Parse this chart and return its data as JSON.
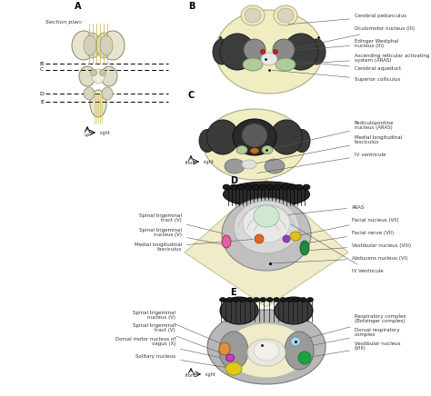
{
  "bg_color": "#ffffff",
  "panel_A_label": "A",
  "panel_B_label": "B",
  "panel_C_label": "C",
  "panel_D_label": "D",
  "panel_E_label": "E",
  "section_plan_text": "Section plan:",
  "B_labels": [
    "Cerebral pedunculus",
    "Oculomotor nucleus (III)",
    "Edinger Westphal\nnucleus (III)",
    "Ascending reticular activating\nsystem (ARAS)",
    "Cerebral aqueduct",
    "Superior colliculus"
  ],
  "C_labels": [
    "Pediculopontine\nnucleus (ARAS)",
    "Medial longitudinal\nfasciculus",
    "IV ventricule"
  ],
  "D_labels_left": [
    "Spinal trigeminal\ntract (V)",
    "Spinal trigeminal\nnucleus (V)",
    "Medial longitudinal\nfasciculus"
  ],
  "D_labels_right": [
    "ARAS",
    "Facial nucleus (VII)",
    "Facial nerve (VII)",
    "Vestibular nucleus (VIII)",
    "Abducens nucleus (VI)",
    "IV Ventricule"
  ],
  "E_labels_left": [
    "Spinal trigeminal\nnucleus (V)",
    "Spinal trigeminal\ntract (V)",
    "Dorsal motor nucleus of\nvagus (X)",
    "Solitary nucleus"
  ],
  "E_labels_right": [
    "Respiratory complex\n(Botzinger complex)",
    "Dorsal respiratory\ncomplex",
    "Vestibular nucleus\n(VIII)"
  ],
  "front_label": "front",
  "right_label": "right",
  "up_label": "up"
}
